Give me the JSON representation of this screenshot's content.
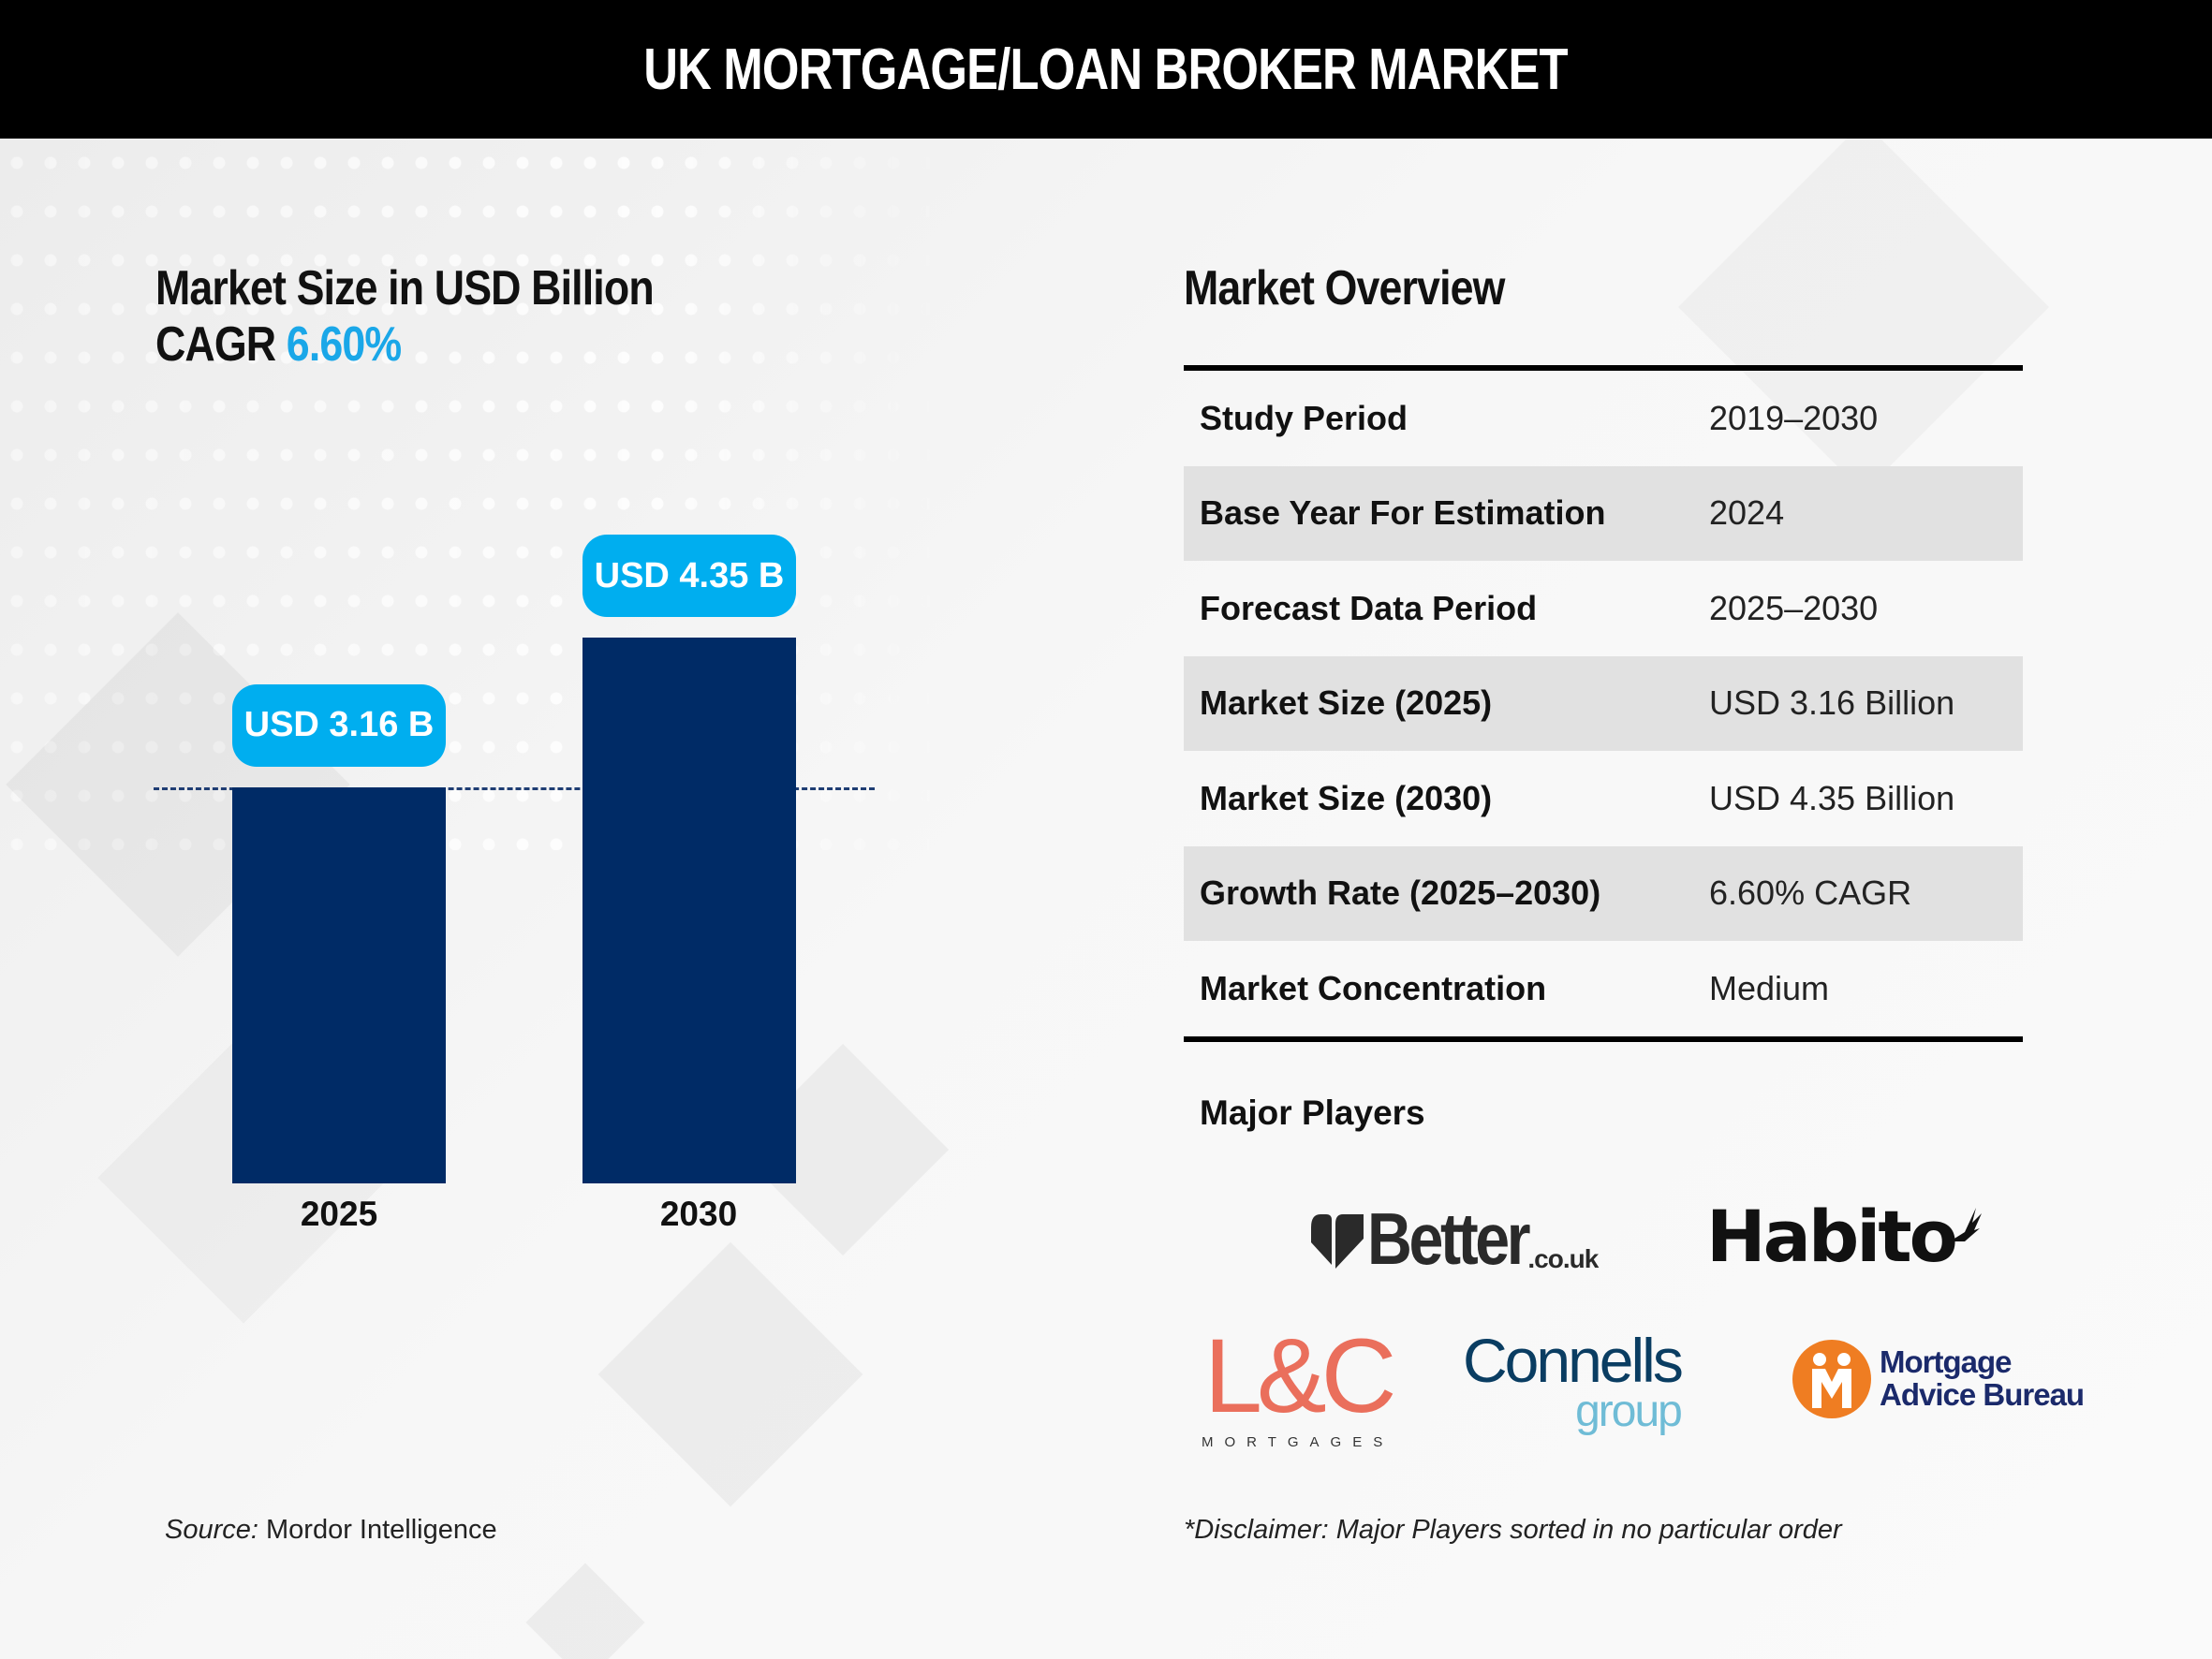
{
  "header": {
    "title": "UK MORTGAGE/LOAN BROKER MARKET"
  },
  "left": {
    "heading": "Market Size in USD Billion",
    "cagr_label": "CAGR",
    "cagr_value": "6.60%",
    "source_label": "Source:",
    "source_value": "Mordor Intelligence"
  },
  "chart_data": {
    "type": "bar",
    "categories": [
      "2025",
      "2030"
    ],
    "values": [
      3.16,
      4.35
    ],
    "data_labels": [
      "USD 3.16 B",
      "USD 4.35 B"
    ],
    "reference_line": 3.16,
    "colors": {
      "bar": "#002b66",
      "label": "#00aeef",
      "accent": "#1aa7e8"
    }
  },
  "overview": {
    "title": "Market Overview",
    "rows": [
      {
        "label": "Study Period",
        "value": "2019–2030"
      },
      {
        "label": "Base Year For Estimation",
        "value": "2024"
      },
      {
        "label": "Forecast Data Period",
        "value": "2025–2030"
      },
      {
        "label": "Market Size (2025)",
        "value": "USD 3.16 Billion"
      },
      {
        "label": "Market Size (2030)",
        "value": "USD 4.35 Billion"
      },
      {
        "label": "Growth Rate (2025–2030)",
        "value": "6.60% CAGR"
      },
      {
        "label": "Market Concentration",
        "value": "Medium"
      }
    ]
  },
  "players": {
    "title": "Major Players",
    "logos": [
      {
        "name": "Better.co.uk",
        "main": "Better",
        "suffix": ".co.uk"
      },
      {
        "name": "Habito",
        "main": "Habito"
      },
      {
        "name": "L&C Mortgages",
        "main": "L&C",
        "sub": "MORTGAGES"
      },
      {
        "name": "Connells group",
        "main": "Connells",
        "sub": "group"
      },
      {
        "name": "Mortgage Advice Bureau",
        "line1": "Mortgage",
        "line2": "Advice Bureau"
      }
    ],
    "disclaimer": "*Disclaimer: Major Players sorted in no particular order"
  }
}
